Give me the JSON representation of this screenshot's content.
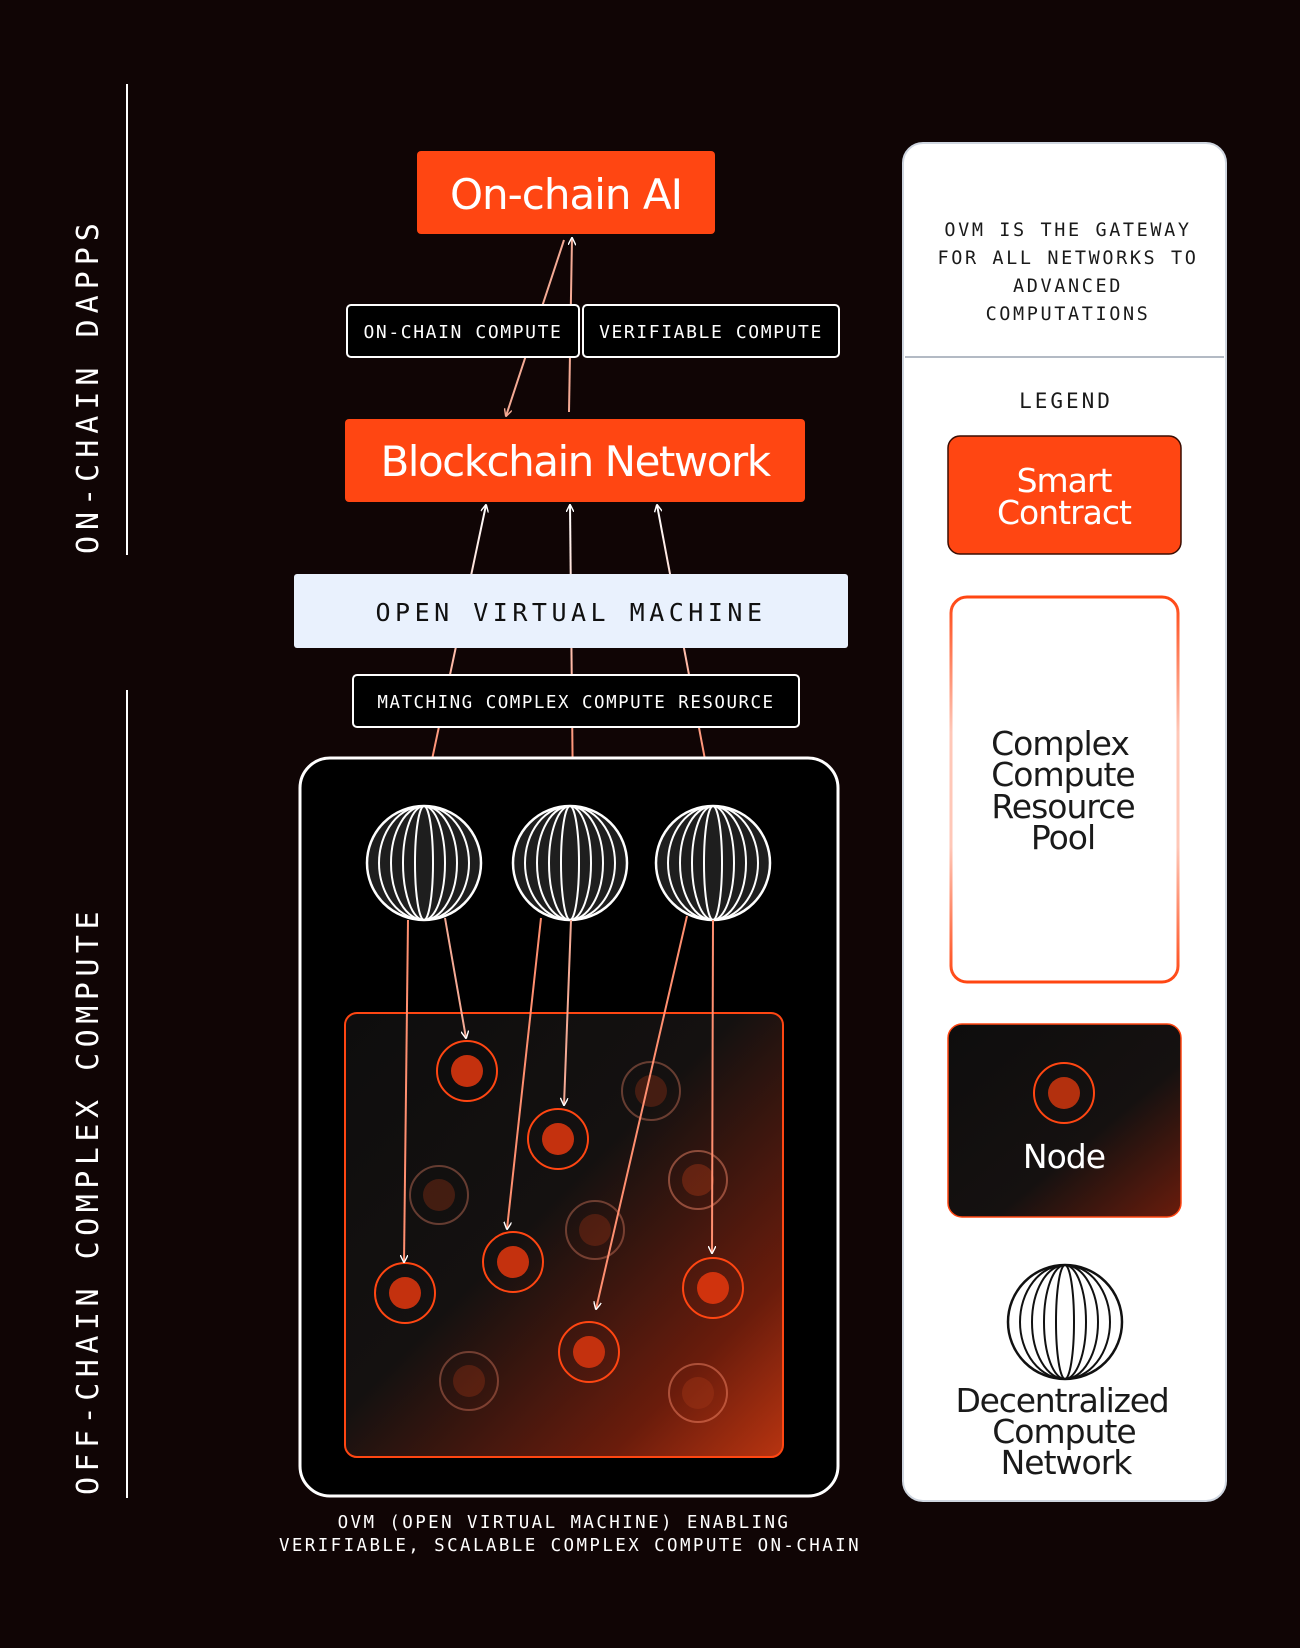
{
  "side_labels": {
    "top": "ON-CHAIN DAPPS",
    "bottom": "OFF-CHAIN COMPLEX COMPUTE"
  },
  "main": {
    "onchain_ai": "On-chain AI",
    "tag_onchain_compute": "ON-CHAIN COMPUTE",
    "tag_verifiable_compute": "VERIFIABLE COMPUTE",
    "blockchain_network": "Blockchain Network",
    "open_virtual_machine": "OPEN VIRTUAL MACHINE",
    "tag_matching": "MATCHING COMPLEX COMPUTE RESOURCE",
    "caption_line1": "OVM (OPEN VIRTUAL MACHINE) ENABLING",
    "caption_line2": "VERIFIABLE, SCALABLE COMPLEX COMPUTE ON-CHAIN"
  },
  "legend": {
    "intro_line1": "OVM IS THE GATEWAY",
    "intro_line2": "FOR ALL NETWORKS TO",
    "intro_line3": "ADVANCED",
    "intro_line4": "COMPUTATIONS",
    "title": "LEGEND",
    "smart_contract_line1": "Smart",
    "smart_contract_line2": "Contract",
    "pool_line1": "Complex",
    "pool_line2": "Compute",
    "pool_line3": "Resource",
    "pool_line4": "Pool",
    "node": "Node",
    "network_line1": "Decentralized",
    "network_line2": "Compute",
    "network_line3": "Network"
  },
  "colors": {
    "background": "#100505",
    "accent": "#FF4612",
    "ovm_box": "#E9F1FD",
    "white": "#FFFFFF"
  },
  "icons": {
    "network": "globe-icon",
    "node": "node-circle-icon"
  }
}
